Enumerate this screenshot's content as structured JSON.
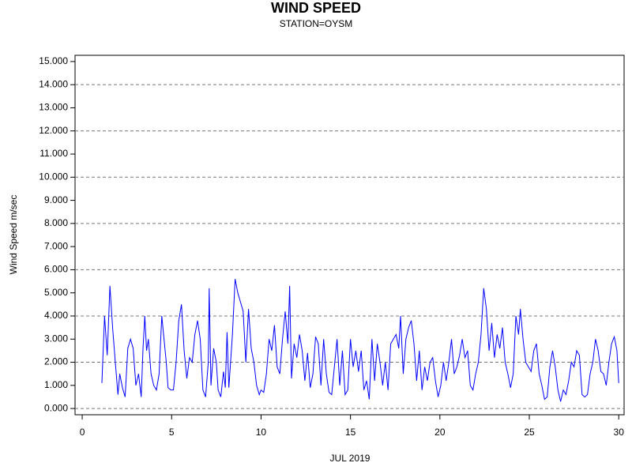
{
  "chart_data": {
    "type": "line",
    "title": "WIND SPEED",
    "subtitle": "STATION=OYSM",
    "x_label": "JUL 2019",
    "y_label": "Wind Speed m/sec",
    "xlim": [
      -0.4,
      30.3
    ],
    "ylim": [
      -0.27,
      15.27
    ],
    "xticks": [
      0,
      5,
      10,
      15,
      20,
      25,
      30
    ],
    "yticks": [
      {
        "value": 0,
        "label": "0.000"
      },
      {
        "value": 1,
        "label": "1.000"
      },
      {
        "value": 2,
        "label": "2.000"
      },
      {
        "value": 3,
        "label": "3.000"
      },
      {
        "value": 4,
        "label": "4.000"
      },
      {
        "value": 5,
        "label": "5.000"
      },
      {
        "value": 6,
        "label": "6.000"
      },
      {
        "value": 7,
        "label": "7.000"
      },
      {
        "value": 8,
        "label": "8.000"
      },
      {
        "value": 9,
        "label": "9.000"
      },
      {
        "value": 10,
        "label": "10.000"
      },
      {
        "value": 11,
        "label": "11.000"
      },
      {
        "value": 12,
        "label": "12.000"
      },
      {
        "value": 13,
        "label": "13.000"
      },
      {
        "value": 14,
        "label": "14.000"
      },
      {
        "value": 15,
        "label": "15.000"
      }
    ],
    "y_grid": [
      0,
      2,
      4,
      6,
      8,
      10,
      12,
      14
    ],
    "grid_style": "dashed",
    "series": [
      {
        "name": "Wind Speed",
        "color": "#0000ff",
        "x": [
          1.1,
          1.25,
          1.4,
          1.55,
          1.7,
          1.85,
          2.0,
          2.1,
          2.25,
          2.4,
          2.55,
          2.7,
          2.85,
          3.0,
          3.15,
          3.3,
          3.4,
          3.5,
          3.6,
          3.7,
          3.85,
          4.0,
          4.15,
          4.3,
          4.45,
          4.55,
          4.7,
          4.8,
          4.95,
          5.1,
          5.25,
          5.4,
          5.55,
          5.7,
          5.85,
          6.0,
          6.15,
          6.3,
          6.45,
          6.6,
          6.75,
          6.9,
          7.05,
          7.1,
          7.2,
          7.35,
          7.5,
          7.6,
          7.75,
          7.9,
          8.0,
          8.1,
          8.2,
          8.4,
          8.55,
          8.7,
          8.85,
          9.0,
          9.15,
          9.3,
          9.45,
          9.6,
          9.75,
          9.9,
          10.0,
          10.15,
          10.3,
          10.45,
          10.6,
          10.75,
          10.9,
          11.05,
          11.2,
          11.35,
          11.5,
          11.6,
          11.7,
          11.85,
          12.0,
          12.15,
          12.3,
          12.45,
          12.6,
          12.75,
          12.9,
          13.05,
          13.2,
          13.35,
          13.5,
          13.65,
          13.8,
          13.95,
          14.1,
          14.25,
          14.4,
          14.55,
          14.7,
          14.85,
          15.0,
          15.15,
          15.3,
          15.45,
          15.6,
          15.75,
          15.9,
          16.05,
          16.2,
          16.35,
          16.5,
          16.65,
          16.8,
          16.95,
          17.1,
          17.25,
          17.4,
          17.55,
          17.7,
          17.8,
          17.95,
          18.1,
          18.25,
          18.4,
          18.55,
          18.7,
          18.85,
          19.0,
          19.15,
          19.3,
          19.45,
          19.6,
          19.75,
          19.9,
          20.05,
          20.2,
          20.35,
          20.5,
          20.65,
          20.8,
          20.95,
          21.1,
          21.25,
          21.4,
          21.55,
          21.7,
          21.85,
          22.0,
          22.15,
          22.3,
          22.45,
          22.6,
          22.75,
          22.9,
          23.05,
          23.2,
          23.35,
          23.5,
          23.65,
          23.8,
          23.95,
          24.1,
          24.25,
          24.4,
          24.5,
          24.65,
          24.8,
          24.95,
          25.1,
          25.25,
          25.4,
          25.55,
          25.7,
          25.85,
          26.0,
          26.15,
          26.3,
          26.45,
          26.6,
          26.75,
          26.9,
          27.05,
          27.2,
          27.35,
          27.5,
          27.65,
          27.8,
          27.95,
          28.1,
          28.25,
          28.4,
          28.55,
          28.7,
          28.85,
          29.0,
          29.15,
          29.3,
          29.45,
          29.6,
          29.75,
          29.9,
          30.0
        ],
        "values": [
          1.1,
          4.0,
          2.3,
          5.3,
          3.5,
          2.0,
          0.6,
          1.5,
          0.9,
          0.5,
          2.6,
          3.0,
          2.6,
          1.0,
          1.5,
          0.5,
          2.6,
          4.0,
          2.5,
          3.0,
          1.5,
          1.0,
          0.8,
          1.5,
          4.0,
          3.2,
          2.0,
          0.9,
          0.8,
          0.8,
          2.0,
          3.8,
          4.5,
          2.5,
          1.3,
          2.2,
          2.0,
          3.2,
          3.8,
          3.0,
          0.8,
          0.5,
          2.0,
          5.2,
          1.0,
          2.6,
          2.0,
          0.8,
          0.5,
          1.6,
          0.9,
          3.3,
          0.9,
          3.2,
          5.6,
          5.0,
          4.6,
          4.2,
          2.0,
          4.3,
          2.6,
          2.0,
          1.0,
          0.6,
          0.8,
          0.7,
          1.5,
          3.0,
          2.5,
          3.6,
          1.8,
          1.5,
          3.0,
          4.2,
          2.8,
          5.3,
          1.3,
          2.8,
          2.2,
          3.2,
          2.5,
          1.2,
          2.4,
          0.9,
          1.5,
          3.1,
          2.8,
          1.0,
          3.0,
          1.5,
          0.7,
          0.6,
          1.8,
          3.0,
          1.0,
          2.5,
          0.6,
          0.8,
          3.0,
          1.8,
          2.5,
          1.6,
          2.5,
          0.8,
          1.2,
          0.4,
          3.0,
          1.2,
          2.8,
          2.0,
          1.0,
          2.0,
          0.8,
          2.8,
          3.0,
          3.2,
          2.6,
          4.0,
          1.5,
          3.0,
          3.5,
          3.8,
          2.8,
          1.2,
          2.5,
          0.8,
          1.8,
          1.2,
          2.0,
          2.2,
          1.2,
          0.5,
          1.0,
          2.0,
          1.2,
          2.0,
          3.0,
          1.5,
          1.8,
          2.3,
          3.0,
          2.2,
          2.5,
          1.0,
          0.8,
          1.5,
          2.0,
          3.2,
          5.2,
          4.3,
          2.5,
          3.7,
          2.2,
          3.2,
          2.6,
          3.5,
          2.0,
          1.5,
          0.9,
          1.5,
          4.0,
          3.2,
          4.3,
          3.0,
          2.0,
          1.8,
          1.6,
          2.5,
          2.8,
          1.5,
          1.0,
          0.4,
          0.5,
          1.8,
          2.5,
          1.8,
          0.8,
          0.3,
          0.8,
          0.6,
          1.2,
          2.0,
          1.8,
          2.5,
          2.3,
          0.6,
          0.5,
          0.6,
          1.5,
          2.0,
          3.0,
          2.5,
          1.6,
          1.5,
          1.0,
          2.0,
          2.8,
          3.1,
          2.5,
          1.1
        ]
      }
    ]
  }
}
